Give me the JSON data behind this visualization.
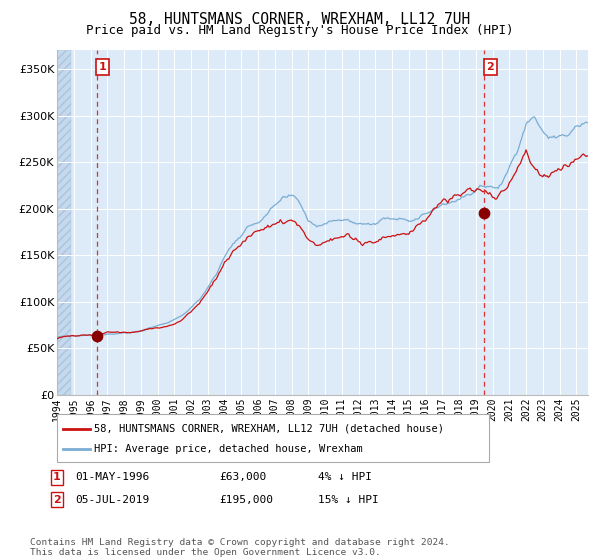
{
  "title": "58, HUNTSMANS CORNER, WREXHAM, LL12 7UH",
  "subtitle": "Price paid vs. HM Land Registry's House Price Index (HPI)",
  "title_fontsize": 10.5,
  "subtitle_fontsize": 9,
  "start_year": 1994.0,
  "end_year": 2025.7,
  "ylim": [
    0,
    370000
  ],
  "yticks": [
    0,
    50000,
    100000,
    150000,
    200000,
    250000,
    300000,
    350000
  ],
  "ytick_labels": [
    "£0",
    "£50K",
    "£100K",
    "£150K",
    "£200K",
    "£250K",
    "£300K",
    "£350K"
  ],
  "hpi_color": "#7aadd4",
  "price_color": "#cc1111",
  "dot_color": "#880000",
  "vline_color": "#dd3333",
  "bg_color": "#ddeaf7",
  "hatch_color": "#c5d8ec",
  "grid_color": "#ffffff",
  "sale1_year": 1996.37,
  "sale1_price": 63000,
  "sale2_year": 2019.51,
  "sale2_price": 195000,
  "legend_line1": "58, HUNTSMANS CORNER, WREXHAM, LL12 7UH (detached house)",
  "legend_line2": "HPI: Average price, detached house, Wrexham",
  "note1_label": "1",
  "note1_date": "01-MAY-1996",
  "note1_price": "£63,000",
  "note1_hpi": "4% ↓ HPI",
  "note2_label": "2",
  "note2_date": "05-JUL-2019",
  "note2_price": "£195,000",
  "note2_hpi": "15% ↓ HPI",
  "footnote": "Contains HM Land Registry data © Crown copyright and database right 2024.\nThis data is licensed under the Open Government Licence v3.0."
}
